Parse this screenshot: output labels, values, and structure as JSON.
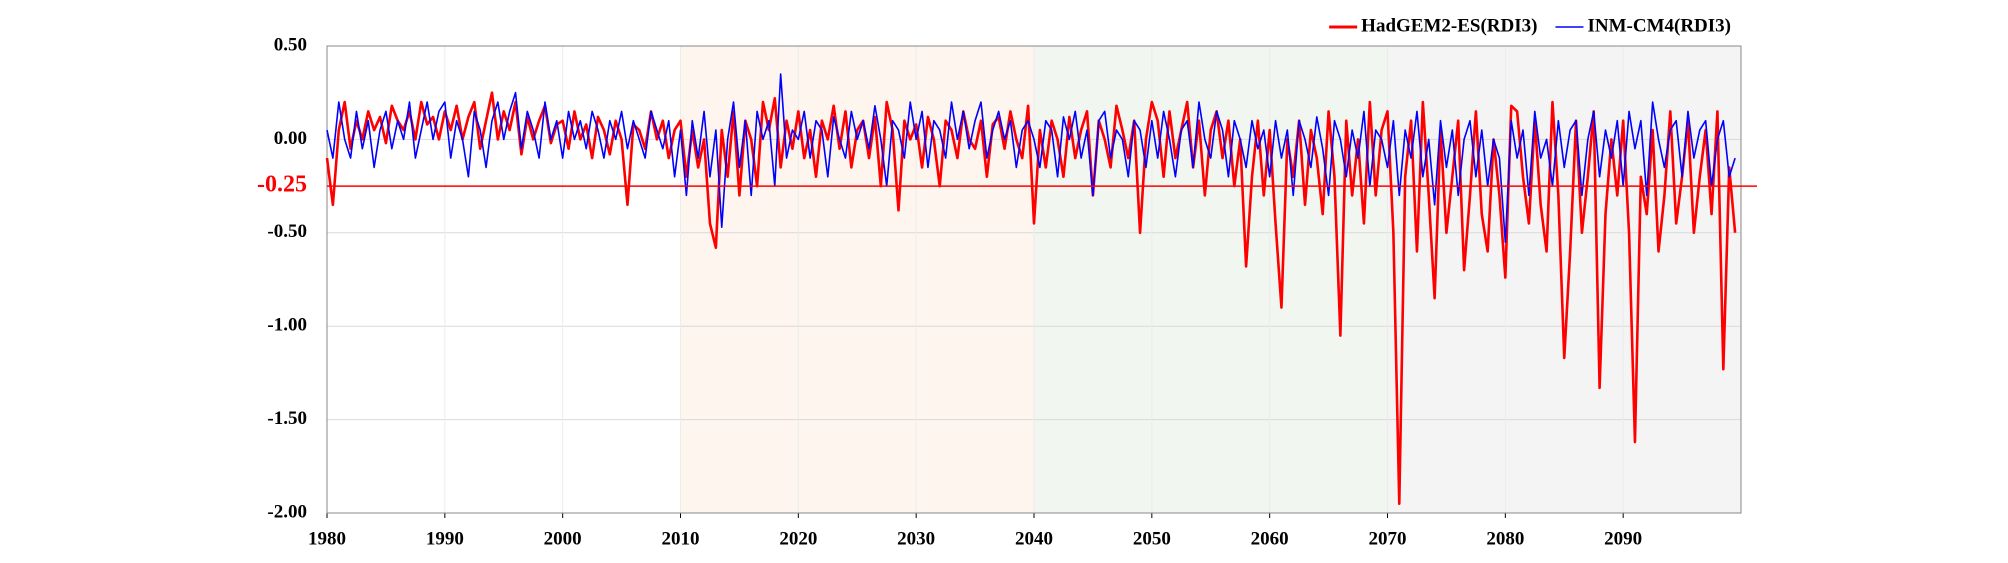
{
  "chart_data": {
    "type": "line",
    "xlim": [
      1980,
      2100
    ],
    "xticks": [
      1980,
      1990,
      2000,
      2010,
      2020,
      2030,
      2040,
      2050,
      2060,
      2070,
      2080,
      2090
    ],
    "ylim": [
      -2,
      0.5
    ],
    "yticks": [
      {
        "value": 0.5,
        "label": "0.50"
      },
      {
        "value": 0,
        "label": "0.00"
      },
      {
        "value": -0.5,
        "label": "-0.50"
      },
      {
        "value": -1,
        "label": "-1.00"
      },
      {
        "value": -1.5,
        "label": "-1.50"
      },
      {
        "value": -2,
        "label": "-2.00"
      }
    ],
    "grid": true,
    "legend": "top-right",
    "threshold": {
      "value": -0.25,
      "label": "-0.25",
      "color": "#ff0000"
    },
    "bands": [
      {
        "start": 2010,
        "end": 2040,
        "color": "#fdf5ee"
      },
      {
        "start": 2040,
        "end": 2070,
        "color": "#f2f6f0"
      },
      {
        "start": 2070,
        "end": 2100,
        "color": "#f4f4f4"
      }
    ],
    "x": [
      1980,
      1980.5,
      1981,
      1981.5,
      1982,
      1982.5,
      1983,
      1983.5,
      1984,
      1984.5,
      1985,
      1985.5,
      1986,
      1986.5,
      1987,
      1987.5,
      1988,
      1988.5,
      1989,
      1989.5,
      1990,
      1990.5,
      1991,
      1991.5,
      1992,
      1992.5,
      1993,
      1993.5,
      1994,
      1994.5,
      1995,
      1995.5,
      1996,
      1996.5,
      1997,
      1997.5,
      1998,
      1998.5,
      1999,
      1999.5,
      2000,
      2000.5,
      2001,
      2001.5,
      2002,
      2002.5,
      2003,
      2003.5,
      2004,
      2004.5,
      2005,
      2005.5,
      2006,
      2006.5,
      2007,
      2007.5,
      2008,
      2008.5,
      2009,
      2009.5,
      2010,
      2010.5,
      2011,
      2011.5,
      2012,
      2012.5,
      2013,
      2013.5,
      2014,
      2014.5,
      2015,
      2015.5,
      2016,
      2016.5,
      2017,
      2017.5,
      2018,
      2018.5,
      2019,
      2019.5,
      2020,
      2020.5,
      2021,
      2021.5,
      2022,
      2022.5,
      2023,
      2023.5,
      2024,
      2024.5,
      2025,
      2025.5,
      2026,
      2026.5,
      2027,
      2027.5,
      2028,
      2028.5,
      2029,
      2029.5,
      2030,
      2030.5,
      2031,
      2031.5,
      2032,
      2032.5,
      2033,
      2033.5,
      2034,
      2034.5,
      2035,
      2035.5,
      2036,
      2036.5,
      2037,
      2037.5,
      2038,
      2038.5,
      2039,
      2039.5,
      2040,
      2040.5,
      2041,
      2041.5,
      2042,
      2042.5,
      2043,
      2043.5,
      2044,
      2044.5,
      2045,
      2045.5,
      2046,
      2046.5,
      2047,
      2047.5,
      2048,
      2048.5,
      2049,
      2049.5,
      2050,
      2050.5,
      2051,
      2051.5,
      2052,
      2052.5,
      2053,
      2053.5,
      2054,
      2054.5,
      2055,
      2055.5,
      2056,
      2056.5,
      2057,
      2057.5,
      2058,
      2058.5,
      2059,
      2059.5,
      2060,
      2060.5,
      2061,
      2061.5,
      2062,
      2062.5,
      2063,
      2063.5,
      2064,
      2064.5,
      2065,
      2065.5,
      2066,
      2066.5,
      2067,
      2067.5,
      2068,
      2068.5,
      2069,
      2069.5,
      2070,
      2070.5,
      2071,
      2071.5,
      2072,
      2072.5,
      2073,
      2073.5,
      2074,
      2074.5,
      2075,
      2075.5,
      2076,
      2076.5,
      2077,
      2077.5,
      2078,
      2078.5,
      2079,
      2079.5,
      2080,
      2080.5,
      2081,
      2081.5,
      2082,
      2082.5,
      2083,
      2083.5,
      2084,
      2084.5,
      2085,
      2085.5,
      2086,
      2086.5,
      2087,
      2087.5,
      2088,
      2088.5,
      2089,
      2089.5,
      2090,
      2090.5,
      2091,
      2091.5,
      2092,
      2092.5,
      2093,
      2093.5,
      2094,
      2094.5,
      2095,
      2095.5,
      2096,
      2096.5,
      2097,
      2097.5,
      2098,
      2098.5,
      2099,
      2099.5
    ],
    "series": [
      {
        "name": "HadGEM2-ES(RDI3)",
        "color": "#ff0000",
        "values": [
          -0.1,
          -0.35,
          0.05,
          0.2,
          -0.05,
          0.1,
          0.0,
          0.15,
          0.05,
          0.12,
          -0.02,
          0.18,
          0.1,
          0.05,
          0.15,
          0.0,
          0.2,
          0.08,
          0.12,
          0.0,
          0.15,
          0.05,
          0.18,
          0.0,
          0.12,
          0.2,
          -0.05,
          0.1,
          0.25,
          0.0,
          0.15,
          0.05,
          0.2,
          -0.08,
          0.12,
          0.0,
          0.1,
          0.18,
          -0.02,
          0.08,
          0.1,
          -0.05,
          0.15,
          0.0,
          0.08,
          -0.1,
          0.12,
          0.05,
          -0.08,
          0.1,
          0.0,
          -0.35,
          0.08,
          0.05,
          -0.05,
          0.15,
          0.0,
          0.1,
          -0.1,
          0.05,
          0.1,
          -0.2,
          0.05,
          -0.15,
          0.0,
          -0.45,
          -0.58,
          0.05,
          -0.2,
          0.15,
          -0.3,
          0.1,
          0.0,
          -0.25,
          0.2,
          0.05,
          0.22,
          -0.15,
          0.1,
          -0.05,
          0.15,
          -0.1,
          0.05,
          -0.2,
          0.1,
          0.0,
          0.18,
          -0.05,
          0.15,
          -0.15,
          0.05,
          0.1,
          -0.1,
          0.12,
          -0.25,
          0.2,
          0.05,
          -0.38,
          0.1,
          0.0,
          0.08,
          -0.15,
          0.12,
          0.0,
          -0.25,
          0.1,
          0.05,
          -0.1,
          0.15,
          0.0,
          -0.05,
          0.1,
          -0.2,
          0.08,
          0.12,
          -0.05,
          0.15,
          0.0,
          -0.1,
          0.18,
          -0.45,
          0.05,
          -0.15,
          0.1,
          0.0,
          -0.2,
          0.12,
          -0.1,
          0.05,
          0.15,
          -0.3,
          0.1,
          0.0,
          -0.15,
          0.18,
          0.05,
          -0.1,
          0.1,
          -0.5,
          0.0,
          0.2,
          0.1,
          -0.2,
          0.15,
          -0.1,
          0.05,
          0.2,
          -0.15,
          0.1,
          -0.3,
          0.05,
          0.15,
          -0.1,
          0.1,
          -0.25,
          0.0,
          -0.68,
          -0.2,
          0.1,
          -0.3,
          0.05,
          -0.45,
          -0.9,
          0.0,
          -0.2,
          0.1,
          -0.35,
          0.05,
          -0.1,
          -0.4,
          0.15,
          -0.2,
          -1.05,
          0.1,
          -0.3,
          0.0,
          -0.45,
          0.2,
          -0.3,
          0.05,
          0.15,
          -0.5,
          -1.95,
          -0.2,
          0.1,
          -0.6,
          0.2,
          -0.3,
          -0.85,
          0.05,
          -0.5,
          -0.2,
          0.1,
          -0.7,
          -0.3,
          0.15,
          -0.4,
          -0.6,
          0.0,
          -0.3,
          -0.74,
          0.18,
          0.15,
          -0.2,
          -0.45,
          0.1,
          -0.35,
          -0.6,
          0.2,
          -0.3,
          -1.17,
          -0.6,
          0.1,
          -0.5,
          -0.2,
          0.15,
          -1.33,
          -0.4,
          0.0,
          -0.3,
          0.1,
          -0.5,
          -1.62,
          -0.2,
          -0.4,
          0.05,
          -0.6,
          -0.3,
          0.15,
          -0.45,
          -0.2,
          0.1,
          -0.5,
          -0.2,
          0.05,
          -0.4,
          0.15,
          -1.23,
          -0.15,
          -0.5
        ]
      },
      {
        "name": "INM-CM4(RDI3)",
        "color": "#0000ff",
        "values": [
          0.05,
          -0.1,
          0.2,
          0.0,
          -0.1,
          0.15,
          -0.05,
          0.1,
          -0.15,
          0.05,
          0.15,
          -0.05,
          0.1,
          0.0,
          0.2,
          -0.1,
          0.05,
          0.2,
          0.0,
          0.15,
          0.2,
          -0.1,
          0.1,
          0.0,
          -0.2,
          0.15,
          0.05,
          -0.15,
          0.1,
          0.2,
          0.0,
          0.15,
          0.25,
          -0.05,
          0.15,
          0.05,
          -0.1,
          0.2,
          0.0,
          0.1,
          -0.1,
          0.15,
          0.0,
          0.1,
          -0.05,
          0.15,
          0.05,
          -0.1,
          0.1,
          0.0,
          0.15,
          -0.05,
          0.1,
          0.0,
          -0.1,
          0.15,
          0.05,
          -0.05,
          0.1,
          -0.2,
          0.05,
          -0.3,
          0.1,
          -0.1,
          0.15,
          -0.2,
          0.05,
          -0.47,
          0.0,
          0.2,
          -0.15,
          0.1,
          -0.3,
          0.15,
          0.0,
          0.1,
          -0.25,
          0.35,
          -0.1,
          0.05,
          0.0,
          0.15,
          -0.1,
          0.1,
          0.05,
          -0.2,
          0.12,
          0.0,
          -0.1,
          0.15,
          0.0,
          0.1,
          -0.05,
          0.18,
          0.0,
          -0.25,
          0.1,
          0.05,
          -0.1,
          0.2,
          0.0,
          0.15,
          -0.15,
          0.1,
          0.05,
          -0.1,
          0.2,
          0.0,
          0.15,
          -0.05,
          0.1,
          0.2,
          -0.1,
          0.05,
          0.15,
          0.0,
          0.1,
          -0.15,
          0.05,
          0.1,
          0.0,
          -0.15,
          0.1,
          0.05,
          -0.2,
          0.12,
          0.0,
          0.15,
          -0.1,
          0.05,
          -0.3,
          0.1,
          0.15,
          -0.1,
          0.05,
          0.0,
          -0.2,
          0.1,
          0.05,
          -0.15,
          0.1,
          -0.1,
          0.15,
          0.0,
          -0.2,
          0.05,
          0.1,
          -0.15,
          0.2,
          0.0,
          -0.1,
          0.15,
          0.05,
          -0.2,
          0.1,
          0.0,
          -0.15,
          0.1,
          -0.05,
          0.05,
          -0.2,
          0.1,
          -0.1,
          0.05,
          -0.3,
          0.1,
          0.0,
          -0.15,
          0.12,
          -0.05,
          -0.3,
          0.1,
          0.0,
          -0.2,
          0.05,
          -0.1,
          0.15,
          -0.25,
          0.05,
          0.0,
          -0.15,
          0.1,
          -0.3,
          0.05,
          -0.1,
          0.15,
          -0.2,
          0.0,
          -0.35,
          0.1,
          -0.15,
          0.05,
          -0.3,
          0.0,
          0.1,
          -0.2,
          0.05,
          -0.25,
          0.0,
          -0.1,
          -0.55,
          0.1,
          -0.1,
          0.05,
          -0.3,
          0.15,
          -0.1,
          0.0,
          -0.25,
          0.1,
          -0.15,
          0.05,
          0.1,
          -0.3,
          0.0,
          0.15,
          -0.2,
          0.05,
          -0.1,
          0.1,
          -0.25,
          0.15,
          -0.05,
          0.1,
          -0.3,
          0.2,
          0.0,
          -0.15,
          0.05,
          0.1,
          -0.2,
          0.15,
          -0.1,
          0.05,
          0.1,
          -0.25,
          0.0,
          0.1,
          -0.2,
          -0.1
        ]
      }
    ]
  }
}
